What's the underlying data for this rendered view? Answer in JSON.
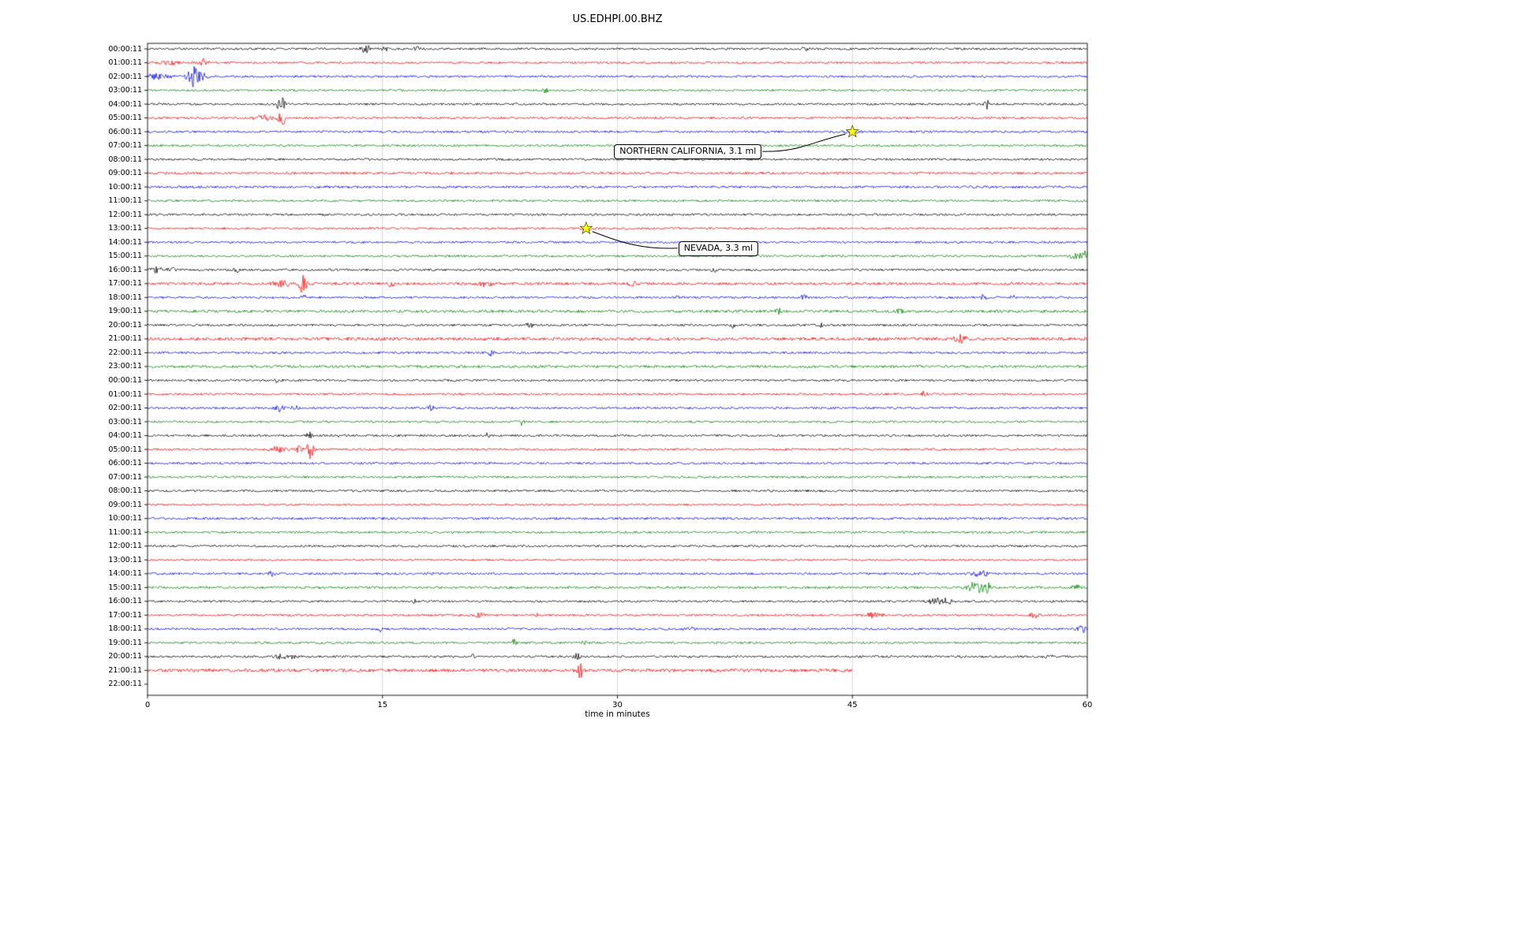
{
  "chart_data": {
    "type": "line",
    "subtype": "seismogram-helicorder",
    "title": "US.EDHPI.00.BHZ",
    "xlabel": "time in minutes",
    "xlim": [
      0,
      60
    ],
    "xticks": [
      "0",
      "15",
      "30",
      "45",
      "60"
    ],
    "grid": "vertical-lines-at-15-30-45",
    "legend": "none",
    "trace_color_cycle": [
      "#000000",
      "#ff0000",
      "#0000ff",
      "#008000"
    ],
    "events": [
      {
        "label": "NORTHERN CALIFORNIA, 3.1 ml",
        "region": "NORTHERN CALIFORNIA",
        "magnitude": "3.1 ml",
        "row_index": 6,
        "row_time": "06:00:11",
        "minute": 45,
        "marker": "yellow-star"
      },
      {
        "label": "NEVADA, 3.3 ml",
        "region": "NEVADA",
        "magnitude": "3.3 ml",
        "row_index": 13,
        "row_time": "13:00:11",
        "minute": 28,
        "marker": "yellow-star"
      }
    ],
    "rows": [
      {
        "label": "00:00:11",
        "color": "#000000",
        "noise": 1.0,
        "duration": 60,
        "bursts": [
          [
            13.9,
            5,
            0.5
          ],
          [
            15.1,
            3,
            0.35
          ],
          [
            17.2,
            2.2,
            0.3
          ],
          [
            42,
            2,
            0.4
          ]
        ]
      },
      {
        "label": "01:00:11",
        "color": "#ff0000",
        "noise": 1.0,
        "duration": 60,
        "bursts": [
          [
            1.3,
            2.2,
            1.0
          ],
          [
            3.6,
            5,
            0.4
          ]
        ]
      },
      {
        "label": "02:00:11",
        "color": "#0000ff",
        "noise": 1.0,
        "duration": 60,
        "bursts": [
          [
            0.4,
            3,
            1.4
          ],
          [
            2.9,
            12,
            0.6
          ],
          [
            3.6,
            4,
            0.4
          ]
        ]
      },
      {
        "label": "03:00:11",
        "color": "#008000",
        "noise": 1.0,
        "duration": 60,
        "bursts": [
          [
            25.4,
            2.5,
            0.3
          ]
        ]
      },
      {
        "label": "04:00:11",
        "color": "#000000",
        "noise": 1.0,
        "duration": 60,
        "bursts": [
          [
            8.5,
            11,
            0.35
          ],
          [
            53.6,
            6,
            0.25
          ]
        ]
      },
      {
        "label": "05:00:11",
        "color": "#ff0000",
        "noise": 1.0,
        "duration": 60,
        "bursts": [
          [
            7.4,
            3,
            0.9
          ],
          [
            8.6,
            9,
            0.4
          ]
        ]
      },
      {
        "label": "06:00:11",
        "color": "#0000ff",
        "noise": 1.0,
        "duration": 60,
        "bursts": [
          [
            45,
            3,
            0.6
          ]
        ]
      },
      {
        "label": "07:00:11",
        "color": "#008000",
        "noise": 1.0,
        "duration": 60,
        "bursts": []
      },
      {
        "label": "08:00:11",
        "color": "#000000",
        "noise": 1.0,
        "duration": 60,
        "bursts": []
      },
      {
        "label": "09:00:11",
        "color": "#ff0000",
        "noise": 1.1,
        "duration": 60,
        "bursts": []
      },
      {
        "label": "10:00:11",
        "color": "#0000ff",
        "noise": 1.1,
        "duration": 60,
        "bursts": []
      },
      {
        "label": "11:00:11",
        "color": "#008000",
        "noise": 1.0,
        "duration": 60,
        "bursts": []
      },
      {
        "label": "12:00:11",
        "color": "#000000",
        "noise": 1.0,
        "duration": 60,
        "bursts": []
      },
      {
        "label": "13:00:11",
        "color": "#ff0000",
        "noise": 1.0,
        "duration": 60,
        "bursts": [
          [
            28,
            2.5,
            0.6
          ]
        ]
      },
      {
        "label": "14:00:11",
        "color": "#0000ff",
        "noise": 1.0,
        "duration": 60,
        "bursts": []
      },
      {
        "label": "15:00:11",
        "color": "#008000",
        "noise": 1.0,
        "duration": 60,
        "bursts": [
          [
            59.3,
            7,
            0.5
          ],
          [
            59.9,
            6,
            0.3
          ]
        ]
      },
      {
        "label": "16:00:11",
        "color": "#000000",
        "noise": 1.0,
        "duration": 60,
        "bursts": [
          [
            0.6,
            3,
            0.8
          ],
          [
            1.6,
            2.5,
            0.5
          ],
          [
            5.8,
            2.5,
            0.6
          ],
          [
            36.2,
            3,
            0.3
          ]
        ]
      },
      {
        "label": "17:00:11",
        "color": "#ff0000",
        "noise": 1.25,
        "duration": 60,
        "bursts": [
          [
            8.6,
            3,
            1.0
          ],
          [
            9.9,
            12,
            0.4
          ],
          [
            15.6,
            4.5,
            0.3
          ],
          [
            21.6,
            3.5,
            0.7
          ],
          [
            30.9,
            2.8,
            0.5
          ]
        ]
      },
      {
        "label": "18:00:11",
        "color": "#0000ff",
        "noise": 1.0,
        "duration": 60,
        "bursts": [
          [
            10,
            2.5,
            0.3
          ],
          [
            34,
            2,
            0.4
          ],
          [
            41.9,
            3.5,
            0.3
          ],
          [
            53.4,
            4.5,
            0.25
          ],
          [
            55.2,
            4,
            0.25
          ]
        ]
      },
      {
        "label": "19:00:11",
        "color": "#008000",
        "noise": 1.3,
        "duration": 60,
        "bursts": [
          [
            40.3,
            3,
            0.3
          ],
          [
            48,
            2.5,
            0.3
          ]
        ]
      },
      {
        "label": "20:00:11",
        "color": "#000000",
        "noise": 1.0,
        "duration": 60,
        "bursts": [
          [
            24.4,
            2.5,
            0.4
          ],
          [
            37.4,
            3.5,
            0.25
          ],
          [
            43,
            3,
            0.35
          ]
        ]
      },
      {
        "label": "21:00:11",
        "color": "#ff0000",
        "noise": 1.5,
        "duration": 60,
        "bursts": [
          [
            51.9,
            4,
            0.6
          ]
        ]
      },
      {
        "label": "22:00:11",
        "color": "#0000ff",
        "noise": 1.0,
        "duration": 60,
        "bursts": [
          [
            21.9,
            3.5,
            0.25
          ]
        ]
      },
      {
        "label": "23:00:11",
        "color": "#008000",
        "noise": 1.2,
        "duration": 60,
        "bursts": []
      },
      {
        "label": "00:00:11",
        "color": "#000000",
        "noise": 1.0,
        "duration": 60,
        "bursts": [
          [
            8.3,
            2,
            0.4
          ]
        ]
      },
      {
        "label": "01:00:11",
        "color": "#ff0000",
        "noise": 1.0,
        "duration": 60,
        "bursts": [
          [
            49.6,
            3.5,
            0.3
          ]
        ]
      },
      {
        "label": "02:00:11",
        "color": "#0000ff",
        "noise": 1.0,
        "duration": 60,
        "bursts": [
          [
            8.4,
            4.5,
            0.4
          ],
          [
            9.4,
            3.5,
            0.3
          ],
          [
            18.1,
            3,
            0.3
          ]
        ]
      },
      {
        "label": "03:00:11",
        "color": "#008000",
        "noise": 1.0,
        "duration": 60,
        "bursts": [
          [
            23.9,
            3.5,
            0.2
          ]
        ]
      },
      {
        "label": "04:00:11",
        "color": "#000000",
        "noise": 1.0,
        "duration": 60,
        "bursts": [
          [
            10.3,
            4.5,
            0.3
          ],
          [
            12,
            2.5,
            0.3
          ],
          [
            21.7,
            2.8,
            0.3
          ]
        ]
      },
      {
        "label": "05:00:11",
        "color": "#ff0000",
        "noise": 1.0,
        "duration": 60,
        "bursts": [
          [
            8.3,
            3,
            0.8
          ],
          [
            9.6,
            4,
            0.4
          ],
          [
            10.4,
            11,
            0.35
          ]
        ]
      },
      {
        "label": "06:00:11",
        "color": "#0000ff",
        "noise": 1.0,
        "duration": 60,
        "bursts": []
      },
      {
        "label": "07:00:11",
        "color": "#008000",
        "noise": 1.0,
        "duration": 60,
        "bursts": []
      },
      {
        "label": "08:00:11",
        "color": "#000000",
        "noise": 1.0,
        "duration": 60,
        "bursts": []
      },
      {
        "label": "09:00:11",
        "color": "#ff0000",
        "noise": 0.85,
        "duration": 60,
        "bursts": []
      },
      {
        "label": "10:00:11",
        "color": "#0000ff",
        "noise": 1.1,
        "duration": 60,
        "bursts": []
      },
      {
        "label": "11:00:11",
        "color": "#008000",
        "noise": 1.0,
        "duration": 60,
        "bursts": []
      },
      {
        "label": "12:00:11",
        "color": "#000000",
        "noise": 1.0,
        "duration": 60,
        "bursts": []
      },
      {
        "label": "13:00:11",
        "color": "#ff0000",
        "noise": 0.9,
        "duration": 60,
        "bursts": []
      },
      {
        "label": "14:00:11",
        "color": "#0000ff",
        "noise": 1.0,
        "duration": 60,
        "bursts": [
          [
            8,
            2.8,
            0.4
          ],
          [
            18,
            2.5,
            0.3
          ],
          [
            53.2,
            3,
            1.0
          ]
        ]
      },
      {
        "label": "15:00:11",
        "color": "#008000",
        "noise": 1.1,
        "duration": 60,
        "bursts": [
          [
            52.9,
            7,
            0.8
          ],
          [
            53.6,
            5,
            0.5
          ],
          [
            59.3,
            4.5,
            0.4
          ]
        ]
      },
      {
        "label": "16:00:11",
        "color": "#000000",
        "noise": 1.0,
        "duration": 60,
        "bursts": [
          [
            17,
            2.5,
            0.4
          ],
          [
            50.4,
            4,
            0.8
          ],
          [
            51.1,
            3,
            0.5
          ]
        ]
      },
      {
        "label": "17:00:11",
        "color": "#ff0000",
        "noise": 1.0,
        "duration": 60,
        "bursts": [
          [
            21.2,
            4,
            0.3
          ],
          [
            25,
            3.5,
            0.25
          ],
          [
            46.4,
            3,
            0.8
          ],
          [
            56.6,
            3.5,
            0.4
          ]
        ]
      },
      {
        "label": "18:00:11",
        "color": "#0000ff",
        "noise": 1.0,
        "duration": 60,
        "bursts": [
          [
            14.9,
            3,
            0.3
          ],
          [
            34.6,
            2,
            0.5
          ],
          [
            59.6,
            4.5,
            0.5
          ]
        ]
      },
      {
        "label": "19:00:11",
        "color": "#008000",
        "noise": 1.0,
        "duration": 60,
        "bursts": [
          [
            23.4,
            5.5,
            0.2
          ],
          [
            27.9,
            3,
            0.25
          ]
        ]
      },
      {
        "label": "20:00:11",
        "color": "#000000",
        "noise": 1.0,
        "duration": 60,
        "bursts": [
          [
            8.8,
            3,
            1.0
          ],
          [
            20.8,
            3.5,
            0.3
          ],
          [
            27.4,
            4.5,
            0.3
          ],
          [
            57.5,
            2.5,
            0.4
          ]
        ]
      },
      {
        "label": "21:00:11",
        "color": "#ff0000",
        "noise": 1.55,
        "duration": 45,
        "bursts": [
          [
            27.6,
            9,
            0.3
          ]
        ]
      },
      {
        "label": "22:00:11",
        "color": "#0000ff",
        "noise": 1.0,
        "duration": 0,
        "bursts": []
      }
    ]
  }
}
